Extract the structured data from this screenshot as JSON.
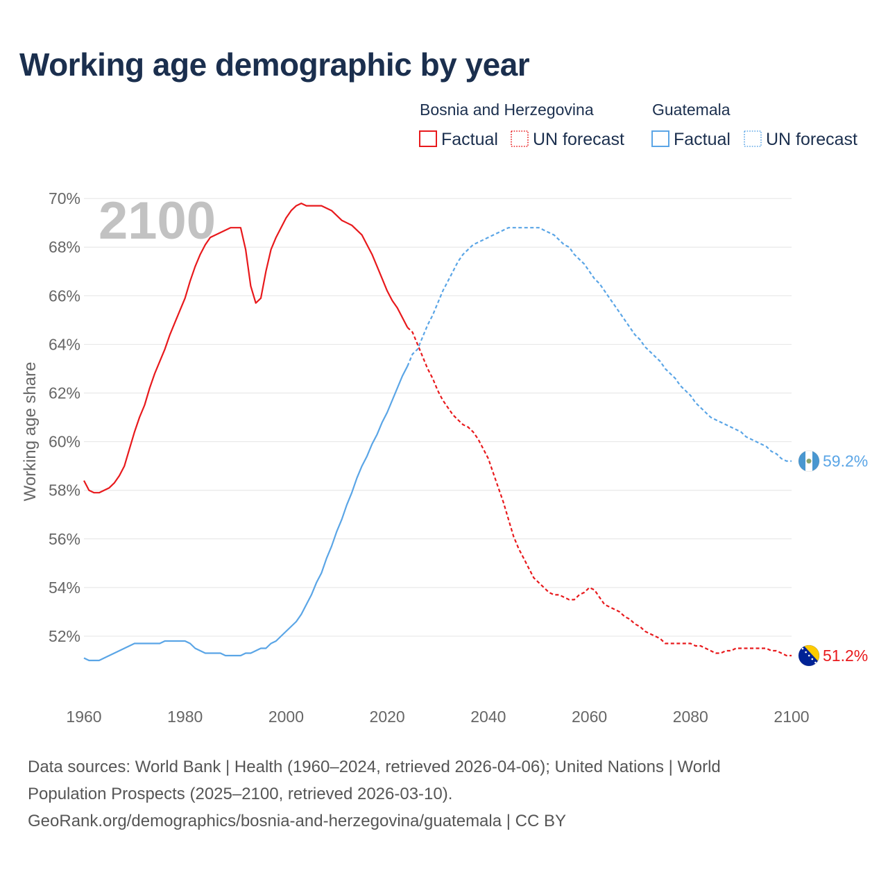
{
  "title": "Working age demographic by year",
  "year_watermark": "2100",
  "legend": {
    "groups": [
      {
        "country": "Bosnia and Herzegovina",
        "color": "#e8191c",
        "items": [
          {
            "label": "Factual",
            "style": "solid"
          },
          {
            "label": "UN forecast",
            "style": "dotted"
          }
        ]
      },
      {
        "country": "Guatemala",
        "color": "#5aa5e6",
        "items": [
          {
            "label": "Factual",
            "style": "solid"
          },
          {
            "label": "UN forecast",
            "style": "dotted"
          }
        ]
      }
    ]
  },
  "footer": {
    "line1": "Data sources: World Bank | Health (1960–2024, retrieved 2026-04-06); United Nations | World",
    "line2": "Population Prospects (2025–2100, retrieved 2026-03-10).",
    "line3": "GeoRank.org/demographics/bosnia-and-herzegovina/guatemala | CC BY"
  },
  "chart_data": {
    "type": "line",
    "title": "Working age demographic by year",
    "xlabel": "",
    "ylabel": "Working age share",
    "xlim": [
      1960,
      2100
    ],
    "ylim": [
      50,
      70.3
    ],
    "x_ticks": [
      1960,
      1980,
      2000,
      2020,
      2040,
      2060,
      2080,
      2100
    ],
    "y_ticks": [
      {
        "value": 52,
        "label": "52%"
      },
      {
        "value": 54,
        "label": "54%"
      },
      {
        "value": 56,
        "label": "56%"
      },
      {
        "value": 58,
        "label": "58%"
      },
      {
        "value": 60,
        "label": "60%"
      },
      {
        "value": 62,
        "label": "62%"
      },
      {
        "value": 64,
        "label": "64%"
      },
      {
        "value": 66,
        "label": "66%"
      },
      {
        "value": 68,
        "label": "68%"
      },
      {
        "value": 70,
        "label": "70%"
      }
    ],
    "grid": true,
    "factual_end_year": 2024,
    "series": [
      {
        "name": "Bosnia and Herzegovina",
        "color": "#e8191c",
        "end_label": "51.2%",
        "flag": "bosnia-flag",
        "points": [
          [
            1960,
            58.4
          ],
          [
            1961,
            58.0
          ],
          [
            1962,
            57.9
          ],
          [
            1963,
            57.9
          ],
          [
            1964,
            58.0
          ],
          [
            1965,
            58.1
          ],
          [
            1966,
            58.3
          ],
          [
            1967,
            58.6
          ],
          [
            1968,
            59.0
          ],
          [
            1969,
            59.7
          ],
          [
            1970,
            60.4
          ],
          [
            1971,
            61.0
          ],
          [
            1972,
            61.5
          ],
          [
            1973,
            62.2
          ],
          [
            1974,
            62.8
          ],
          [
            1975,
            63.3
          ],
          [
            1976,
            63.8
          ],
          [
            1977,
            64.4
          ],
          [
            1978,
            64.9
          ],
          [
            1979,
            65.4
          ],
          [
            1980,
            65.9
          ],
          [
            1981,
            66.6
          ],
          [
            1982,
            67.2
          ],
          [
            1983,
            67.7
          ],
          [
            1984,
            68.1
          ],
          [
            1985,
            68.4
          ],
          [
            1986,
            68.5
          ],
          [
            1987,
            68.6
          ],
          [
            1988,
            68.7
          ],
          [
            1989,
            68.8
          ],
          [
            1990,
            68.8
          ],
          [
            1991,
            68.8
          ],
          [
            1992,
            67.9
          ],
          [
            1993,
            66.4
          ],
          [
            1994,
            65.7
          ],
          [
            1995,
            65.9
          ],
          [
            1996,
            67.0
          ],
          [
            1997,
            67.9
          ],
          [
            1998,
            68.4
          ],
          [
            1999,
            68.8
          ],
          [
            2000,
            69.2
          ],
          [
            2001,
            69.5
          ],
          [
            2002,
            69.7
          ],
          [
            2003,
            69.8
          ],
          [
            2004,
            69.7
          ],
          [
            2005,
            69.7
          ],
          [
            2006,
            69.7
          ],
          [
            2007,
            69.7
          ],
          [
            2008,
            69.6
          ],
          [
            2009,
            69.5
          ],
          [
            2010,
            69.3
          ],
          [
            2011,
            69.1
          ],
          [
            2012,
            69.0
          ],
          [
            2013,
            68.9
          ],
          [
            2014,
            68.7
          ],
          [
            2015,
            68.5
          ],
          [
            2016,
            68.1
          ],
          [
            2017,
            67.7
          ],
          [
            2018,
            67.2
          ],
          [
            2019,
            66.7
          ],
          [
            2020,
            66.2
          ],
          [
            2021,
            65.8
          ],
          [
            2022,
            65.5
          ],
          [
            2023,
            65.1
          ],
          [
            2024,
            64.7
          ],
          [
            2025,
            64.5
          ],
          [
            2026,
            64.0
          ],
          [
            2027,
            63.5
          ],
          [
            2028,
            63.0
          ],
          [
            2029,
            62.6
          ],
          [
            2030,
            62.1
          ],
          [
            2031,
            61.7
          ],
          [
            2032,
            61.4
          ],
          [
            2033,
            61.1
          ],
          [
            2034,
            60.9
          ],
          [
            2035,
            60.7
          ],
          [
            2036,
            60.6
          ],
          [
            2037,
            60.4
          ],
          [
            2038,
            60.1
          ],
          [
            2039,
            59.7
          ],
          [
            2040,
            59.3
          ],
          [
            2041,
            58.7
          ],
          [
            2042,
            58.1
          ],
          [
            2043,
            57.5
          ],
          [
            2044,
            56.8
          ],
          [
            2045,
            56.1
          ],
          [
            2046,
            55.6
          ],
          [
            2047,
            55.2
          ],
          [
            2048,
            54.8
          ],
          [
            2049,
            54.4
          ],
          [
            2050,
            54.2
          ],
          [
            2051,
            54.0
          ],
          [
            2052,
            53.8
          ],
          [
            2053,
            53.7
          ],
          [
            2054,
            53.7
          ],
          [
            2055,
            53.6
          ],
          [
            2056,
            53.5
          ],
          [
            2057,
            53.5
          ],
          [
            2058,
            53.7
          ],
          [
            2059,
            53.8
          ],
          [
            2060,
            54.0
          ],
          [
            2061,
            53.9
          ],
          [
            2062,
            53.6
          ],
          [
            2063,
            53.3
          ],
          [
            2064,
            53.2
          ],
          [
            2065,
            53.1
          ],
          [
            2066,
            53.0
          ],
          [
            2067,
            52.8
          ],
          [
            2068,
            52.7
          ],
          [
            2069,
            52.5
          ],
          [
            2070,
            52.4
          ],
          [
            2071,
            52.2
          ],
          [
            2072,
            52.1
          ],
          [
            2073,
            52.0
          ],
          [
            2074,
            51.9
          ],
          [
            2075,
            51.7
          ],
          [
            2076,
            51.7
          ],
          [
            2077,
            51.7
          ],
          [
            2078,
            51.7
          ],
          [
            2079,
            51.7
          ],
          [
            2080,
            51.7
          ],
          [
            2081,
            51.6
          ],
          [
            2082,
            51.6
          ],
          [
            2083,
            51.5
          ],
          [
            2084,
            51.4
          ],
          [
            2085,
            51.3
          ],
          [
            2086,
            51.3
          ],
          [
            2087,
            51.4
          ],
          [
            2088,
            51.4
          ],
          [
            2089,
            51.5
          ],
          [
            2090,
            51.5
          ],
          [
            2091,
            51.5
          ],
          [
            2092,
            51.5
          ],
          [
            2093,
            51.5
          ],
          [
            2094,
            51.5
          ],
          [
            2095,
            51.5
          ],
          [
            2096,
            51.4
          ],
          [
            2097,
            51.4
          ],
          [
            2098,
            51.3
          ],
          [
            2099,
            51.2
          ],
          [
            2100,
            51.2
          ]
        ]
      },
      {
        "name": "Guatemala",
        "color": "#5aa5e6",
        "end_label": "59.2%",
        "flag": "guatemala-flag",
        "points": [
          [
            1960,
            51.1
          ],
          [
            1961,
            51.0
          ],
          [
            1962,
            51.0
          ],
          [
            1963,
            51.0
          ],
          [
            1964,
            51.1
          ],
          [
            1965,
            51.2
          ],
          [
            1966,
            51.3
          ],
          [
            1967,
            51.4
          ],
          [
            1968,
            51.5
          ],
          [
            1969,
            51.6
          ],
          [
            1970,
            51.7
          ],
          [
            1971,
            51.7
          ],
          [
            1972,
            51.7
          ],
          [
            1973,
            51.7
          ],
          [
            1974,
            51.7
          ],
          [
            1975,
            51.7
          ],
          [
            1976,
            51.8
          ],
          [
            1977,
            51.8
          ],
          [
            1978,
            51.8
          ],
          [
            1979,
            51.8
          ],
          [
            1980,
            51.8
          ],
          [
            1981,
            51.7
          ],
          [
            1982,
            51.5
          ],
          [
            1983,
            51.4
          ],
          [
            1984,
            51.3
          ],
          [
            1985,
            51.3
          ],
          [
            1986,
            51.3
          ],
          [
            1987,
            51.3
          ],
          [
            1988,
            51.2
          ],
          [
            1989,
            51.2
          ],
          [
            1990,
            51.2
          ],
          [
            1991,
            51.2
          ],
          [
            1992,
            51.3
          ],
          [
            1993,
            51.3
          ],
          [
            1994,
            51.4
          ],
          [
            1995,
            51.5
          ],
          [
            1996,
            51.5
          ],
          [
            1997,
            51.7
          ],
          [
            1998,
            51.8
          ],
          [
            1999,
            52.0
          ],
          [
            2000,
            52.2
          ],
          [
            2001,
            52.4
          ],
          [
            2002,
            52.6
          ],
          [
            2003,
            52.9
          ],
          [
            2004,
            53.3
          ],
          [
            2005,
            53.7
          ],
          [
            2006,
            54.2
          ],
          [
            2007,
            54.6
          ],
          [
            2008,
            55.2
          ],
          [
            2009,
            55.7
          ],
          [
            2010,
            56.3
          ],
          [
            2011,
            56.8
          ],
          [
            2012,
            57.4
          ],
          [
            2013,
            57.9
          ],
          [
            2014,
            58.5
          ],
          [
            2015,
            59.0
          ],
          [
            2016,
            59.4
          ],
          [
            2017,
            59.9
          ],
          [
            2018,
            60.3
          ],
          [
            2019,
            60.8
          ],
          [
            2020,
            61.2
          ],
          [
            2021,
            61.7
          ],
          [
            2022,
            62.2
          ],
          [
            2023,
            62.7
          ],
          [
            2024,
            63.1
          ],
          [
            2025,
            63.6
          ],
          [
            2026,
            63.8
          ],
          [
            2027,
            64.3
          ],
          [
            2028,
            64.8
          ],
          [
            2029,
            65.2
          ],
          [
            2030,
            65.7
          ],
          [
            2031,
            66.2
          ],
          [
            2032,
            66.6
          ],
          [
            2033,
            67.0
          ],
          [
            2034,
            67.4
          ],
          [
            2035,
            67.7
          ],
          [
            2036,
            67.9
          ],
          [
            2037,
            68.1
          ],
          [
            2038,
            68.2
          ],
          [
            2039,
            68.3
          ],
          [
            2040,
            68.4
          ],
          [
            2041,
            68.5
          ],
          [
            2042,
            68.6
          ],
          [
            2043,
            68.7
          ],
          [
            2044,
            68.8
          ],
          [
            2045,
            68.8
          ],
          [
            2046,
            68.8
          ],
          [
            2047,
            68.8
          ],
          [
            2048,
            68.8
          ],
          [
            2049,
            68.8
          ],
          [
            2050,
            68.8
          ],
          [
            2051,
            68.7
          ],
          [
            2052,
            68.6
          ],
          [
            2053,
            68.5
          ],
          [
            2054,
            68.3
          ],
          [
            2055,
            68.1
          ],
          [
            2056,
            68.0
          ],
          [
            2057,
            67.7
          ],
          [
            2058,
            67.5
          ],
          [
            2059,
            67.3
          ],
          [
            2060,
            67.0
          ],
          [
            2061,
            66.7
          ],
          [
            2062,
            66.5
          ],
          [
            2063,
            66.2
          ],
          [
            2064,
            65.9
          ],
          [
            2065,
            65.6
          ],
          [
            2066,
            65.3
          ],
          [
            2067,
            65.0
          ],
          [
            2068,
            64.7
          ],
          [
            2069,
            64.4
          ],
          [
            2070,
            64.2
          ],
          [
            2071,
            63.9
          ],
          [
            2072,
            63.7
          ],
          [
            2073,
            63.5
          ],
          [
            2074,
            63.3
          ],
          [
            2075,
            63.0
          ],
          [
            2076,
            62.8
          ],
          [
            2077,
            62.6
          ],
          [
            2078,
            62.3
          ],
          [
            2079,
            62.1
          ],
          [
            2080,
            61.9
          ],
          [
            2081,
            61.6
          ],
          [
            2082,
            61.4
          ],
          [
            2083,
            61.2
          ],
          [
            2084,
            61.0
          ],
          [
            2085,
            60.9
          ],
          [
            2086,
            60.8
          ],
          [
            2087,
            60.7
          ],
          [
            2088,
            60.6
          ],
          [
            2089,
            60.5
          ],
          [
            2090,
            60.4
          ],
          [
            2091,
            60.2
          ],
          [
            2092,
            60.1
          ],
          [
            2093,
            60.0
          ],
          [
            2094,
            59.9
          ],
          [
            2095,
            59.8
          ],
          [
            2096,
            59.6
          ],
          [
            2097,
            59.5
          ],
          [
            2098,
            59.3
          ],
          [
            2099,
            59.2
          ],
          [
            2100,
            59.2
          ]
        ]
      }
    ]
  }
}
